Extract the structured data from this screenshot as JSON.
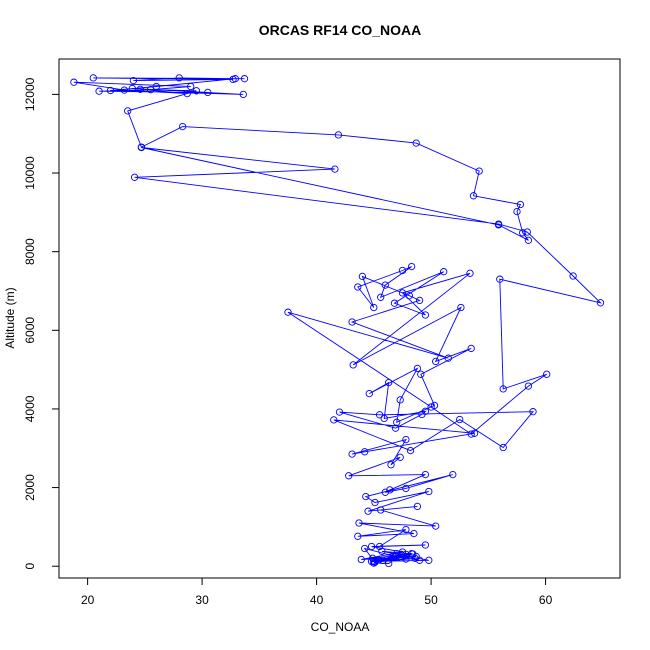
{
  "chart_data": {
    "type": "line",
    "title": "ORCAS RF14 CO_NOAA",
    "xlabel": "CO_NOAA",
    "ylabel": "Altitude (m)",
    "xlim": [
      17.5,
      66.5
    ],
    "ylim": [
      -300,
      12900
    ],
    "x_ticks": [
      20,
      30,
      40,
      50,
      60
    ],
    "y_ticks": [
      0,
      2000,
      4000,
      6000,
      8000,
      10000,
      12000
    ],
    "x_tick_labels": [
      "20",
      "30",
      "40",
      "50",
      "60"
    ],
    "y_tick_labels": [
      "0",
      "2000",
      "4000",
      "6000",
      "8000",
      "10000",
      "12000"
    ],
    "grid": false,
    "legend": "none",
    "marker": "open-circle",
    "color": "#0000ff",
    "series": [
      {
        "x": [
          33.7,
          20.5,
          32.7,
          24.0,
          28.0,
          32.9,
          26.0,
          22.0,
          33.6,
          23.9,
          30.5,
          21.0,
          25.5,
          29.0,
          18.8,
          23.2,
          28.7,
          24.6,
          29.5,
          23.5,
          24.7,
          28.3,
          41.9,
          48.7,
          54.2,
          53.7,
          57.8,
          57.5,
          58.0,
          58.5,
          55.9,
          24.7,
          41.6,
          24.1,
          55.9,
          58.4,
          62.4,
          64.8,
          56.0,
          56.3,
          60.1,
          58.5,
          53.5,
          50.0,
          37.5,
          51.5,
          43.1,
          49.0,
          48.1,
          44.0,
          45.0,
          43.6,
          47.5,
          48.3,
          46.0,
          45.6,
          51.1,
          46.8,
          49.5,
          47.5,
          53.4,
          43.2,
          52.6,
          50.4,
          53.5,
          49.1,
          50.3,
          47.0,
          47.3,
          48.8,
          44.6,
          46.3,
          45.9,
          49.5,
          49.2,
          46.9,
          42.0,
          45.5,
          58.9,
          56.3,
          52.5,
          48.2,
          41.5,
          53.8,
          44.2,
          43.1,
          47.8,
          46.5,
          47.3,
          42.8,
          49.5,
          46.4,
          46.0,
          47.8,
          51.9,
          44.3,
          45.1,
          49.8,
          44.5,
          48.8,
          45.6,
          50.4,
          43.7,
          48.5,
          43.6,
          47.8,
          45.5,
          49.5,
          44.8,
          47.5,
          43.9,
          48.7,
          47.0,
          49.0,
          46.9,
          44.8,
          47.8,
          44.2,
          45.1,
          48.6,
          46.9,
          45.0,
          49.8,
          45.7,
          48.4,
          45.0,
          46.3,
          47.4,
          45.4,
          47.4,
          45.8,
          44.9,
          48.3,
          46.7,
          45.0,
          47.8
        ],
        "y": [
          12400,
          12420,
          12380,
          12350,
          12420,
          12400,
          12200,
          12100,
          12000,
          12150,
          12050,
          12080,
          12120,
          12200,
          12310,
          12110,
          12020,
          12130,
          12090,
          11580,
          10660,
          11180,
          10970,
          10760,
          10050,
          9420,
          9200,
          9020,
          8480,
          8290,
          8680,
          10650,
          10100,
          9890,
          8700,
          8500,
          7380,
          6700,
          7300,
          4510,
          4880,
          4580,
          3360,
          4050,
          6460,
          5290,
          6210,
          6760,
          6880,
          7370,
          6580,
          7100,
          7520,
          7620,
          7150,
          6840,
          7490,
          6690,
          6390,
          6950,
          7450,
          5120,
          6580,
          5210,
          5540,
          4880,
          4090,
          3660,
          4230,
          5030,
          4390,
          4670,
          3760,
          3940,
          3860,
          3510,
          3920,
          3850,
          3930,
          3020,
          3730,
          2940,
          3720,
          3380,
          2910,
          2850,
          3220,
          2580,
          2770,
          2300,
          2330,
          1940,
          1880,
          1980,
          2330,
          1770,
          1620,
          1900,
          1400,
          1520,
          1430,
          1020,
          1100,
          830,
          760,
          930,
          500,
          540,
          500,
          360,
          170,
          250,
          320,
          150,
          250,
          120,
          180,
          450,
          100,
          200,
          260,
          120,
          150,
          380,
          310,
          80,
          70,
          300,
          160,
          210,
          150,
          200,
          320,
          250,
          120,
          300
        ]
      }
    ]
  }
}
